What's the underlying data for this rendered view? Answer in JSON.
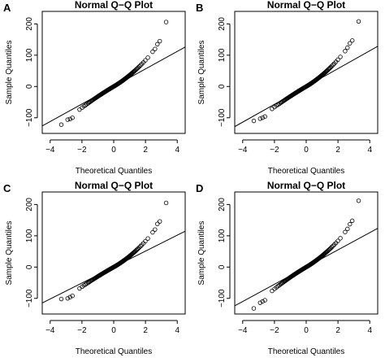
{
  "chart_data": [
    {
      "type": "scatter",
      "panel_label": "A",
      "title": "Normal Q−Q Plot",
      "xlabel": "Theoretical Quantiles",
      "ylabel": "Sample Quantiles",
      "xlim": [
        -4.5,
        4.5
      ],
      "ylim": [
        -150,
        240
      ],
      "xticks": [
        -4,
        -2,
        0,
        2,
        4
      ],
      "xtick_labels": [
        "−4",
        "−2",
        "0",
        "2",
        "4"
      ],
      "yticks": [
        -100,
        0,
        100,
        200
      ],
      "ytick_labels": [
        "−100",
        "0",
        "100",
        "200"
      ],
      "grid": false,
      "reference_line": {
        "slope": 28.0,
        "intercept": 0
      },
      "tail_points": [
        [
          -3.3,
          -122
        ],
        [
          -2.9,
          -106
        ],
        [
          -2.75,
          -104
        ],
        [
          -2.6,
          -100
        ],
        [
          2.45,
          111
        ],
        [
          2.6,
          120
        ],
        [
          2.75,
          135
        ],
        [
          2.9,
          145
        ],
        [
          3.3,
          206
        ]
      ],
      "body": {
        "slope": 30.0,
        "upper_curve": 6.0,
        "lower_curve": 2.0
      }
    },
    {
      "type": "scatter",
      "panel_label": "B",
      "title": "Normal Q−Q Plot",
      "xlabel": "Theoretical Quantiles",
      "ylabel": "Sample Quantiles",
      "xlim": [
        -4.5,
        4.5
      ],
      "ylim": [
        -150,
        240
      ],
      "xticks": [
        -4,
        -2,
        0,
        2,
        4
      ],
      "xtick_labels": [
        "−4",
        "−2",
        "0",
        "2",
        "4"
      ],
      "yticks": [
        -100,
        0,
        100,
        200
      ],
      "ytick_labels": [
        "−100",
        "0",
        "100",
        "200"
      ],
      "grid": false,
      "reference_line": {
        "slope": 28.5,
        "intercept": 0
      },
      "tail_points": [
        [
          -3.3,
          -110
        ],
        [
          -2.9,
          -103
        ],
        [
          -2.75,
          -100
        ],
        [
          -2.6,
          -96
        ],
        [
          2.45,
          113
        ],
        [
          2.6,
          124
        ],
        [
          2.75,
          138
        ],
        [
          2.9,
          147
        ],
        [
          3.3,
          208
        ]
      ],
      "body": {
        "slope": 30.0,
        "upper_curve": 6.5,
        "lower_curve": 1.5
      }
    },
    {
      "type": "scatter",
      "panel_label": "C",
      "title": "Normal Q−Q Plot",
      "xlabel": "Theoretical Quantiles",
      "ylabel": "Sample Quantiles",
      "xlim": [
        -4.5,
        4.5
      ],
      "ylim": [
        -150,
        240
      ],
      "xticks": [
        -4,
        -2,
        0,
        2,
        4
      ],
      "xtick_labels": [
        "−4",
        "−2",
        "0",
        "2",
        "4"
      ],
      "yticks": [
        -100,
        0,
        100,
        200
      ],
      "ytick_labels": [
        "−100",
        "0",
        "100",
        "200"
      ],
      "grid": false,
      "reference_line": {
        "slope": 25.5,
        "intercept": 0
      },
      "tail_points": [
        [
          -3.3,
          -102
        ],
        [
          -2.9,
          -100
        ],
        [
          -2.75,
          -96
        ],
        [
          -2.6,
          -92
        ],
        [
          2.45,
          111
        ],
        [
          2.6,
          120
        ],
        [
          2.75,
          138
        ],
        [
          2.9,
          146
        ],
        [
          3.3,
          205
        ]
      ],
      "body": {
        "slope": 28.5,
        "upper_curve": 6.5,
        "lower_curve": 1.5
      }
    },
    {
      "type": "scatter",
      "panel_label": "D",
      "title": "Normal Q−Q Plot",
      "xlabel": "Theoretical Quantiles",
      "ylabel": "Sample Quantiles",
      "xlim": [
        -4.5,
        4.5
      ],
      "ylim": [
        -150,
        240
      ],
      "xticks": [
        -4,
        -2,
        0,
        2,
        4
      ],
      "xtick_labels": [
        "−4",
        "−2",
        "0",
        "2",
        "4"
      ],
      "yticks": [
        -100,
        0,
        100,
        200
      ],
      "ytick_labels": [
        "−100",
        "0",
        "100",
        "200"
      ],
      "grid": false,
      "reference_line": {
        "slope": 27.5,
        "intercept": 0
      },
      "tail_points": [
        [
          -3.3,
          -132
        ],
        [
          -2.9,
          -114
        ],
        [
          -2.75,
          -110
        ],
        [
          -2.6,
          -106
        ],
        [
          2.45,
          112
        ],
        [
          2.6,
          122
        ],
        [
          2.75,
          137
        ],
        [
          2.9,
          148
        ],
        [
          3.3,
          212
        ]
      ],
      "body": {
        "slope": 30.0,
        "upper_curve": 6.0,
        "lower_curve": 2.5
      }
    }
  ]
}
